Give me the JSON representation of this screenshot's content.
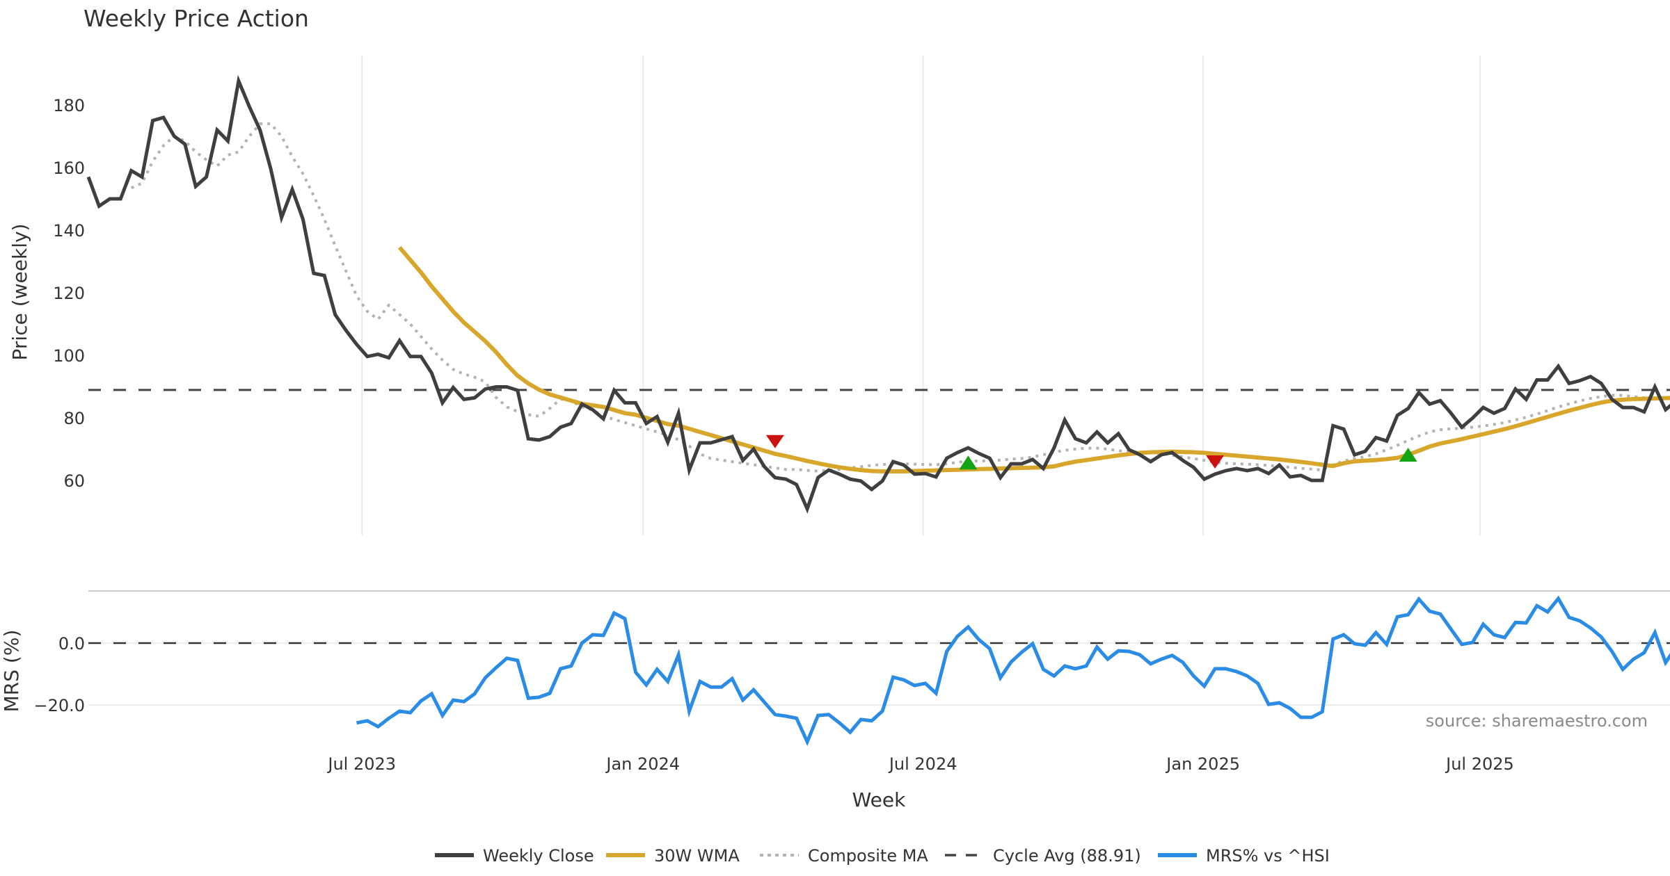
{
  "chart_data": [
    {
      "type": "line",
      "panel": "price",
      "title": "Weekly Price Action",
      "ylabel": "Price (weekly)",
      "ylim": [
        40,
        192
      ],
      "yticks": [
        60,
        80,
        100,
        120,
        140,
        160,
        180
      ],
      "grid": "vertical",
      "cycle_avg": 88.91,
      "series": [
        {
          "name": "Weekly Close",
          "color": "#3f3f3f",
          "values": [
            157,
            147.7,
            150,
            150,
            159,
            157,
            175,
            176,
            170,
            167.5,
            154,
            157,
            172,
            168.5,
            187.7,
            179.5,
            172,
            159.6,
            144,
            153,
            143.5,
            126.2,
            125.5,
            113,
            108,
            103.5,
            99.6,
            100.3,
            99.2,
            104.7,
            99.6,
            99.6,
            94.3,
            84.8,
            89.7,
            85.9,
            86.4,
            89.2,
            89.9,
            89.9,
            88.8,
            73.3,
            72.9,
            74,
            77,
            78.2,
            84.4,
            82.6,
            79.7,
            88.8,
            84.8,
            84.8,
            78.2,
            80.4,
            72.2,
            81.5,
            63.3,
            72,
            72,
            73,
            74,
            66.4,
            70,
            64.4,
            60.9,
            60.4,
            58.7,
            50.9,
            60.9,
            63.3,
            62,
            60.4,
            59.8,
            57.1,
            59.8,
            66,
            64.9,
            62,
            62.2,
            61.1,
            67.1,
            68.9,
            70.4,
            68.6,
            67.1,
            60.9,
            65.3,
            65.3,
            66.7,
            63.8,
            70.4,
            79.3,
            73.3,
            72,
            75.5,
            72,
            74.9,
            69.8,
            68.2,
            66,
            68.2,
            68.9,
            66.4,
            64.2,
            60.4,
            62,
            63.1,
            63.8,
            63.1,
            63.8,
            62.2,
            64.9,
            61.1,
            61.6,
            60,
            60,
            77.5,
            76.4,
            68.2,
            69.3,
            73.7,
            72.6,
            80.8,
            83,
            88.1,
            84.4,
            85.5,
            81.5,
            77,
            79.9,
            83.3,
            81.5,
            83,
            89.2,
            85.9,
            92.1,
            92.1,
            96.5,
            91,
            91.9,
            93.2,
            91,
            85.9,
            83.3,
            83.3,
            81.9,
            89.9,
            82.6,
            85.5
          ]
        },
        {
          "name": "30W WMA",
          "color": "#d9a62c",
          "values": [
            null,
            null,
            null,
            null,
            null,
            null,
            null,
            null,
            null,
            null,
            null,
            null,
            null,
            null,
            null,
            null,
            null,
            null,
            null,
            null,
            null,
            null,
            null,
            null,
            null,
            null,
            null,
            null,
            null,
            134.5,
            130.5,
            126.5,
            122,
            118,
            114,
            110.5,
            107.5,
            104.5,
            101,
            97,
            93.5,
            91,
            89,
            87.5,
            86.5,
            85.5,
            84.5,
            84,
            83.5,
            82.5,
            81.5,
            81,
            80,
            79,
            78,
            77.5,
            76.5,
            75.5,
            74.5,
            73.5,
            72.5,
            71.5,
            70.5,
            69.5,
            68.5,
            67.8,
            67,
            66.2,
            65.5,
            64.8,
            64.2,
            63.7,
            63.3,
            63,
            62.9,
            62.9,
            62.9,
            63,
            63.1,
            63.2,
            63.3,
            63.4,
            63.5,
            63.6,
            63.7,
            63.8,
            63.9,
            64,
            64.1,
            64.2,
            64.5,
            65.3,
            66,
            66.5,
            67,
            67.5,
            68,
            68.4,
            68.8,
            69,
            69.1,
            69.2,
            69.1,
            69,
            68.8,
            68.5,
            68.2,
            67.9,
            67.6,
            67.3,
            67,
            66.7,
            66.3,
            65.9,
            65.5,
            65,
            64.6,
            65.5,
            66.1,
            66.3,
            66.5,
            66.8,
            67.2,
            68.2,
            69.5,
            70.8,
            71.8,
            72.5,
            73.2,
            74,
            74.8,
            75.6,
            76.4,
            77.3,
            78.3,
            79.3,
            80.3,
            81.3,
            82.3,
            83.2,
            84.1,
            84.9,
            85.5,
            85.8,
            86,
            86.1,
            86.2,
            86.3,
            86.4,
            86.4
          ]
        },
        {
          "name": "Composite MA",
          "color": "#b3b3b3",
          "values": [
            null,
            null,
            null,
            null,
            153.5,
            155,
            162,
            167,
            170,
            168.5,
            165,
            162.5,
            160.5,
            164,
            165,
            170,
            174,
            174,
            170,
            163.5,
            158,
            151,
            143.5,
            135,
            127,
            119,
            114,
            111.5,
            116,
            113,
            110,
            106,
            102,
            98.5,
            95.5,
            94,
            93,
            91.5,
            86.5,
            83.5,
            82,
            81,
            80.5,
            83,
            86,
            85.5,
            83.5,
            82.5,
            80.5,
            79.5,
            78.5,
            77.5,
            76.5,
            75.5,
            74.5,
            73,
            71,
            68.5,
            67,
            66.5,
            66,
            65.5,
            65,
            64.5,
            64,
            63.5,
            63.5,
            63.2,
            63,
            63.2,
            63.5,
            64,
            64.4,
            64.8,
            65.1,
            65.3,
            65.3,
            65.2,
            65.1,
            65,
            65.3,
            65.8,
            66.2,
            66.2,
            66.3,
            66.5,
            66.8,
            67,
            67.5,
            68.2,
            69,
            69.6,
            70,
            70.3,
            70.3,
            70,
            69.5,
            69.2,
            69,
            68.8,
            68.6,
            68.1,
            67.5,
            67,
            66.4,
            65.8,
            65.5,
            65.3,
            65.2,
            65,
            64.8,
            64.5,
            64.2,
            63.9,
            63.6,
            63.3,
            65,
            66.2,
            67,
            67.6,
            68.5,
            69.8,
            71.2,
            72.8,
            74.2,
            75.5,
            76.2,
            76.5,
            76.7,
            77,
            77.4,
            77.9,
            78.5,
            79.3,
            80.2,
            81.2,
            82.3,
            83.5,
            84.5,
            85.4,
            86.2,
            86.8,
            87.2,
            87.2,
            86.8,
            86.4,
            86.2,
            86.2,
            86.1
          ]
        }
      ],
      "signals": [
        {
          "type": "sell",
          "week_index": 64,
          "value": 72.5,
          "color": "#cc1111"
        },
        {
          "type": "buy",
          "week_index": 82,
          "value": 65.5,
          "color": "#14a314"
        },
        {
          "type": "sell",
          "week_index": 105,
          "value": 66,
          "color": "#cc1111"
        },
        {
          "type": "buy",
          "week_index": 123,
          "value": 68,
          "color": "#14a314"
        }
      ]
    },
    {
      "type": "line",
      "panel": "mrs",
      "ylabel": "MRS (%)",
      "ylim": [
        -36,
        16
      ],
      "yticks": [
        0.0,
        -20.0
      ],
      "ytick_labels": [
        "0.0",
        "−20.0"
      ],
      "xlabel": "Week",
      "xticks": [
        {
          "label": "Jul 2023",
          "week_index": 25.5
        },
        {
          "label": "Jan 2024",
          "week_index": 51.7
        },
        {
          "label": "Jul 2024",
          "week_index": 77.8
        },
        {
          "label": "Jan 2025",
          "week_index": 103.9
        },
        {
          "label": "Jul 2025",
          "week_index": 129.7
        }
      ],
      "series": [
        {
          "name": "MRS% vs ^HSI",
          "color": "#2b8ce6",
          "start_index": 25,
          "values": [
            -25.8,
            -25.1,
            -27,
            -24.3,
            -22,
            -22.5,
            -18.7,
            -16.4,
            -23.4,
            -18.4,
            -18.9,
            -16.4,
            -11.2,
            -7.9,
            -4.9,
            -5.6,
            -17.8,
            -17.5,
            -16.2,
            -8.3,
            -7.4,
            0,
            2.7,
            2.5,
            9.7,
            7.9,
            -9.4,
            -13.5,
            -8.5,
            -12.4,
            -3.8,
            -22,
            -12.4,
            -14.2,
            -14.2,
            -11.5,
            -18.4,
            -15.1,
            -19.1,
            -23.1,
            -23.6,
            -24.3,
            -31.9,
            -23.4,
            -23.1,
            -25.8,
            -28.8,
            -24.7,
            -25.1,
            -22,
            -11,
            -11.9,
            -13.7,
            -13,
            -16.2,
            -2.7,
            2.2,
            5.2,
            1.1,
            -1.8,
            -11.2,
            -6.1,
            -2.9,
            -0.2,
            -8.5,
            -10.6,
            -7.4,
            -8.3,
            -7.4,
            -1.3,
            -5.2,
            -2.5,
            -2.7,
            -3.8,
            -6.7,
            -5.2,
            -4,
            -6.2,
            -10.6,
            -13.9,
            -8.3,
            -8.3,
            -9.2,
            -10.6,
            -13,
            -19.8,
            -19.3,
            -21.1,
            -24,
            -24,
            -22.2,
            1.3,
            2.7,
            -0.2,
            -0.7,
            3.4,
            -0.4,
            8.5,
            9.2,
            14.2,
            10.3,
            9.4,
            4.5,
            -0.4,
            0.2,
            6.1,
            2.7,
            1.8,
            6.7,
            6.5,
            12.1,
            10.1,
            14.4,
            8.3,
            7.2,
            4.9,
            2,
            -2.7,
            -8.5,
            -5.2,
            -3.1,
            3.4,
            -6.3,
            -1.1
          ]
        }
      ],
      "annotation": "source: sharemaestro.com"
    }
  ],
  "legend": {
    "placement": "bottom-center",
    "items": [
      {
        "label": "Weekly Close",
        "style": "solid",
        "color": "#3f3f3f"
      },
      {
        "label": "30W WMA",
        "style": "solid",
        "color": "#d9a62c"
      },
      {
        "label": "Composite MA",
        "style": "dotted",
        "color": "#b3b3b3"
      },
      {
        "label": "Cycle Avg (88.91)",
        "style": "dashed",
        "color": "#444444"
      },
      {
        "label": "MRS% vs ^HSI",
        "style": "solid",
        "color": "#2b8ce6"
      }
    ]
  }
}
